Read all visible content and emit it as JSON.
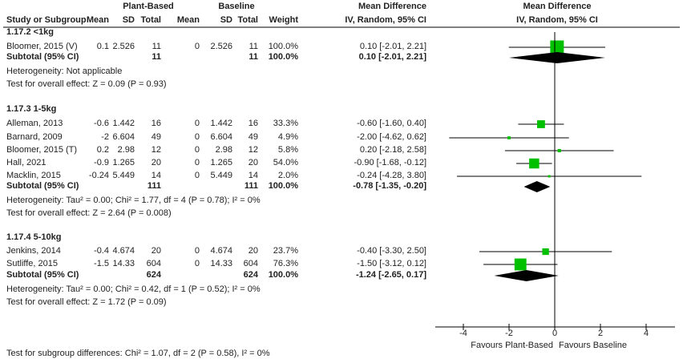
{
  "headers": {
    "group1": "Plant-Based",
    "group2": "Baseline",
    "md_left": "Mean Difference",
    "md_right": "Mean Difference",
    "study": "Study or Subgroup",
    "mean1": "Mean",
    "sd1": "SD",
    "total1": "Total",
    "mean2": "Mean",
    "sd2": "SD",
    "total2": "Total",
    "weight": "Weight",
    "ci_left": "IV, Random, 95% CI",
    "ci_right": "IV, Random, 95% CI"
  },
  "colors": {
    "square": "#00c000",
    "diamond": "#000000",
    "line": "#000000"
  },
  "chart_data": {
    "type": "forest",
    "xlim": [
      -5,
      5
    ],
    "xticks": [
      "-4",
      "-2",
      "0",
      "2",
      "4"
    ],
    "xlabel_left": "Favours Plant-Based",
    "xlabel_right": "Favours Baseline",
    "subgroups": [
      {
        "title": "1.17.2 <1kg",
        "studies": [
          {
            "name": "Bloomer, 2015 (V)",
            "mean1": "0.1",
            "sd1": "2.526",
            "n1": "11",
            "mean2": "0",
            "sd2": "2.526",
            "n2": "11",
            "weight": "100.0%",
            "ci": "0.10 [-2.01, 2.21]",
            "md": 0.1,
            "lo": -2.01,
            "hi": 2.21,
            "w": 100
          }
        ],
        "subtotal": {
          "label": "Subtotal (95% CI)",
          "n1": "11",
          "n2": "11",
          "weight": "100.0%",
          "ci": "0.10 [-2.01, 2.21]",
          "md": 0.1,
          "lo": -2.01,
          "hi": 2.21
        },
        "heterogeneity": "Heterogeneity: Not applicable",
        "overall": "Test for overall effect: Z = 0.09 (P = 0.93)"
      },
      {
        "title": "1.17.3 1-5kg",
        "studies": [
          {
            "name": "Alleman, 2013",
            "mean1": "-0.6",
            "sd1": "1.442",
            "n1": "16",
            "mean2": "0",
            "sd2": "1.442",
            "n2": "16",
            "weight": "33.3%",
            "ci": "-0.60 [-1.60, 0.40]",
            "md": -0.6,
            "lo": -1.6,
            "hi": 0.4,
            "w": 33.3
          },
          {
            "name": "Barnard, 2009",
            "mean1": "-2",
            "sd1": "6.604",
            "n1": "49",
            "mean2": "0",
            "sd2": "6.604",
            "n2": "49",
            "weight": "4.9%",
            "ci": "-2.00 [-4.62, 0.62]",
            "md": -2.0,
            "lo": -4.62,
            "hi": 0.62,
            "w": 4.9
          },
          {
            "name": "Bloomer, 2015 (T)",
            "mean1": "0.2",
            "sd1": "2.98",
            "n1": "12",
            "mean2": "0",
            "sd2": "2.98",
            "n2": "12",
            "weight": "5.8%",
            "ci": "0.20 [-2.18, 2.58]",
            "md": 0.2,
            "lo": -2.18,
            "hi": 2.58,
            "w": 5.8
          },
          {
            "name": "Hall, 2021",
            "mean1": "-0.9",
            "sd1": "1.265",
            "n1": "20",
            "mean2": "0",
            "sd2": "1.265",
            "n2": "20",
            "weight": "54.0%",
            "ci": "-0.90 [-1.68, -0.12]",
            "md": -0.9,
            "lo": -1.68,
            "hi": -0.12,
            "w": 54.0
          },
          {
            "name": "Macklin, 2015",
            "mean1": "-0.24",
            "sd1": "5.449",
            "n1": "14",
            "mean2": "0",
            "sd2": "5.449",
            "n2": "14",
            "weight": "2.0%",
            "ci": "-0.24 [-4.28, 3.80]",
            "md": -0.24,
            "lo": -4.28,
            "hi": 3.8,
            "w": 2.0
          }
        ],
        "subtotal": {
          "label": "Subtotal (95% CI)",
          "n1": "111",
          "n2": "111",
          "weight": "100.0%",
          "ci": "-0.78 [-1.35, -0.20]",
          "md": -0.78,
          "lo": -1.35,
          "hi": -0.2
        },
        "heterogeneity": "Heterogeneity: Tau² = 0.00; Chi² = 1.77, df = 4 (P = 0.78); I² = 0%",
        "overall": "Test for overall effect: Z = 2.64 (P = 0.008)"
      },
      {
        "title": "1.17.4 5-10kg",
        "studies": [
          {
            "name": "Jenkins, 2014",
            "mean1": "-0.4",
            "sd1": "4.674",
            "n1": "20",
            "mean2": "0",
            "sd2": "4.674",
            "n2": "20",
            "weight": "23.7%",
            "ci": "-0.40 [-3.30, 2.50]",
            "md": -0.4,
            "lo": -3.3,
            "hi": 2.5,
            "w": 23.7
          },
          {
            "name": "Sutliffe, 2015",
            "mean1": "-1.5",
            "sd1": "14.33",
            "n1": "604",
            "mean2": "0",
            "sd2": "14.33",
            "n2": "604",
            "weight": "76.3%",
            "ci": "-1.50 [-3.12, 0.12]",
            "md": -1.5,
            "lo": -3.12,
            "hi": 0.12,
            "w": 76.3
          }
        ],
        "subtotal": {
          "label": "Subtotal (95% CI)",
          "n1": "624",
          "n2": "624",
          "weight": "100.0%",
          "ci": "-1.24 [-2.65, 0.17]",
          "md": -1.24,
          "lo": -2.65,
          "hi": 0.17
        },
        "heterogeneity": "Heterogeneity: Tau² = 0.00; Chi² = 0.42, df = 1 (P = 0.52); I² = 0%",
        "overall": "Test for overall effect: Z = 1.72 (P = 0.09)"
      }
    ],
    "subgroup_test": "Test for subgroup differences: Chi² = 1.07, df = 2 (P = 0.58), I² = 0%"
  }
}
